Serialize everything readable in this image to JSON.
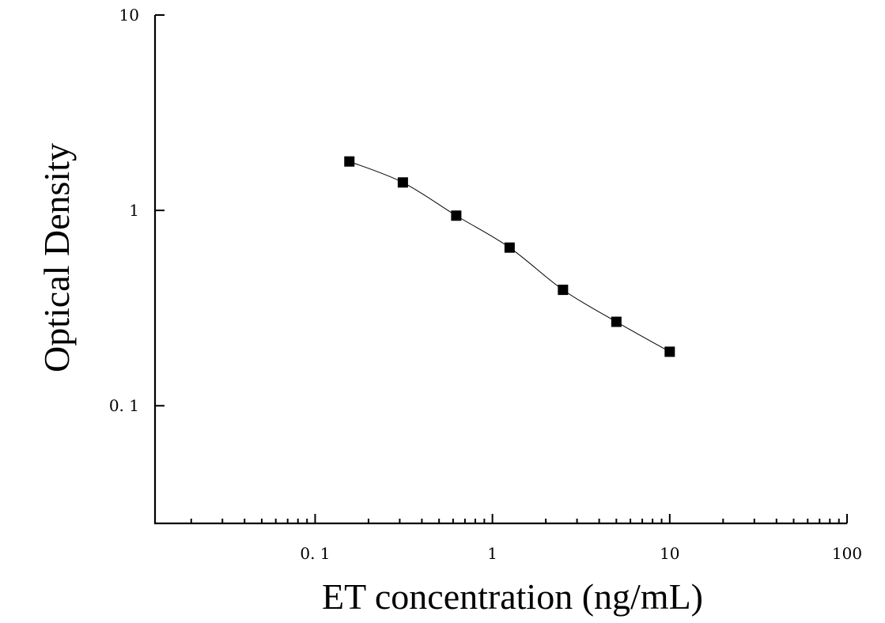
{
  "chart_data": {
    "type": "scatter",
    "xlabel": "ET concentration (ng/mL)",
    "ylabel": "Optical Density",
    "xscale": "log",
    "yscale": "log",
    "xlim": [
      0.0125,
      100
    ],
    "ylim": [
      0.025,
      10
    ],
    "x_ticks": [
      {
        "value": 0.1,
        "label": "0. 1"
      },
      {
        "value": 1,
        "label": "1"
      },
      {
        "value": 10,
        "label": "10"
      },
      {
        "value": 100,
        "label": "100"
      }
    ],
    "y_ticks": [
      {
        "value": 0.1,
        "label": "0. 1"
      },
      {
        "value": 1,
        "label": "1"
      },
      {
        "value": 10,
        "label": "10"
      }
    ],
    "grid": false,
    "fit_curve": true,
    "series": [
      {
        "x": [
          0.156,
          0.3125,
          0.625,
          1.25,
          2.5,
          5,
          10
        ],
        "y": [
          1.78,
          1.39,
          0.94,
          0.645,
          0.392,
          0.269,
          0.189
        ]
      }
    ]
  }
}
